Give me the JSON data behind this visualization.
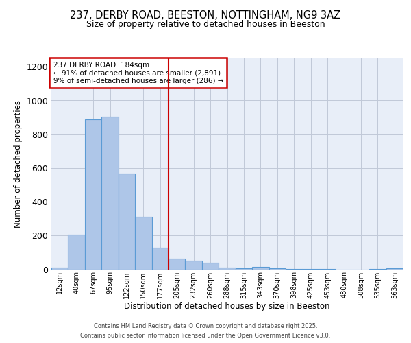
{
  "title1": "237, DERBY ROAD, BEESTON, NOTTINGHAM, NG9 3AZ",
  "title2": "Size of property relative to detached houses in Beeston",
  "xlabel": "Distribution of detached houses by size in Beeston",
  "ylabel": "Number of detached properties",
  "bin_labels": [
    "12sqm",
    "40sqm",
    "67sqm",
    "95sqm",
    "122sqm",
    "150sqm",
    "177sqm",
    "205sqm",
    "232sqm",
    "260sqm",
    "288sqm",
    "315sqm",
    "343sqm",
    "370sqm",
    "398sqm",
    "425sqm",
    "453sqm",
    "480sqm",
    "508sqm",
    "535sqm",
    "563sqm"
  ],
  "bin_values": [
    10,
    205,
    890,
    905,
    568,
    310,
    130,
    63,
    50,
    40,
    12,
    8,
    15,
    7,
    2,
    1,
    1,
    0,
    0,
    1,
    5
  ],
  "bar_color": "#aec6e8",
  "bar_edge_color": "#5b9bd5",
  "vline_x": 6.5,
  "vline_color": "#cc0000",
  "annotation_title": "237 DERBY ROAD: 184sqm",
  "annotation_line1": "← 91% of detached houses are smaller (2,891)",
  "annotation_line2": "9% of semi-detached houses are larger (286) →",
  "annotation_box_color": "#cc0000",
  "ylim": [
    0,
    1250
  ],
  "yticks": [
    0,
    200,
    400,
    600,
    800,
    1000,
    1200
  ],
  "footer1": "Contains HM Land Registry data © Crown copyright and database right 2025.",
  "footer2": "Contains public sector information licensed under the Open Government Licence v3.0.",
  "fig_bg_color": "#ffffff",
  "plot_bg_color": "#e8eef8"
}
